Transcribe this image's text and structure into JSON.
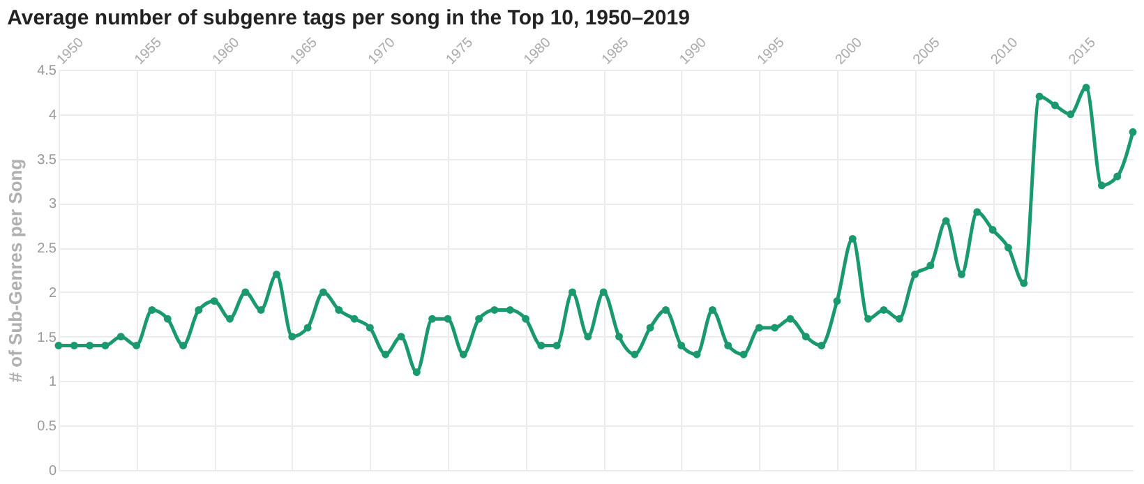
{
  "chart_data": {
    "type": "line",
    "title": "Average number of subgenre tags per song in the Top 10, 1950–2019",
    "ylabel": "# of Sub-Genres per Song",
    "x": [
      1950,
      1951,
      1952,
      1953,
      1954,
      1955,
      1956,
      1957,
      1958,
      1959,
      1960,
      1961,
      1962,
      1963,
      1964,
      1965,
      1966,
      1967,
      1968,
      1969,
      1970,
      1971,
      1972,
      1973,
      1974,
      1975,
      1976,
      1977,
      1978,
      1979,
      1980,
      1981,
      1982,
      1983,
      1984,
      1985,
      1986,
      1987,
      1988,
      1989,
      1990,
      1991,
      1992,
      1993,
      1994,
      1995,
      1996,
      1997,
      1998,
      1999,
      2000,
      2001,
      2002,
      2003,
      2004,
      2005,
      2006,
      2007,
      2008,
      2009,
      2010,
      2011,
      2012,
      2013,
      2014,
      2015,
      2016,
      2017,
      2018,
      2019
    ],
    "series": [
      {
        "color": "#1a9a6c",
        "values": [
          1.4,
          1.4,
          1.4,
          1.4,
          1.5,
          1.4,
          1.8,
          1.7,
          1.4,
          1.8,
          1.9,
          1.7,
          2.0,
          1.8,
          2.2,
          1.5,
          1.6,
          2.0,
          1.8,
          1.7,
          1.6,
          1.3,
          1.5,
          1.1,
          1.7,
          1.7,
          1.3,
          1.7,
          1.8,
          1.8,
          1.7,
          1.4,
          1.4,
          2.0,
          1.5,
          2.0,
          1.5,
          1.3,
          1.6,
          1.8,
          1.4,
          1.3,
          1.8,
          1.4,
          1.3,
          1.6,
          1.6,
          1.7,
          1.5,
          1.4,
          1.9,
          2.6,
          1.7,
          1.8,
          1.7,
          2.2,
          2.3,
          2.8,
          2.2,
          2.9,
          2.7,
          2.5,
          2.1,
          4.2,
          4.1,
          4.0,
          4.3,
          3.2,
          3.3,
          3.8
        ]
      }
    ],
    "xlim": [
      1950,
      2019
    ],
    "xticks": [
      1950,
      1955,
      1960,
      1965,
      1970,
      1975,
      1980,
      1985,
      1990,
      1995,
      2000,
      2005,
      2010,
      2015
    ],
    "ylim": [
      0,
      4.5
    ],
    "yticks": [
      0,
      0.5,
      1,
      1.5,
      2,
      2.5,
      3,
      3.5,
      4,
      4.5
    ],
    "grid": true,
    "marker": "circle",
    "line_style": "solid"
  }
}
